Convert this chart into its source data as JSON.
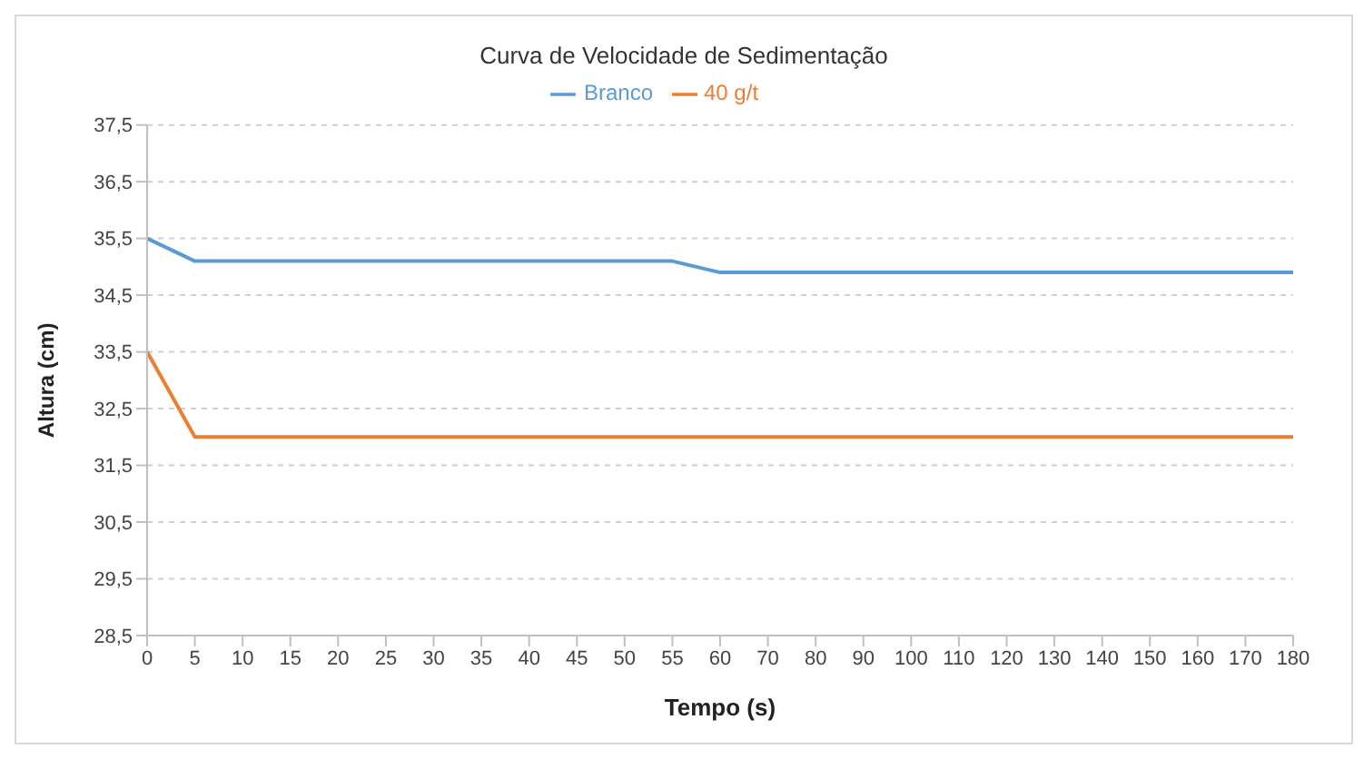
{
  "chart_data": {
    "type": "line",
    "title": "Curva de Velocidade de Sedimentação",
    "xlabel": "Tempo (s)",
    "ylabel": "Altura (cm)",
    "categories": [
      "0",
      "5",
      "10",
      "15",
      "20",
      "25",
      "30",
      "35",
      "40",
      "45",
      "50",
      "55",
      "60",
      "70",
      "80",
      "90",
      "100",
      "110",
      "120",
      "130",
      "140",
      "150",
      "160",
      "170",
      "180"
    ],
    "series": [
      {
        "name": "Branco",
        "color": "#5b9bd5",
        "values": [
          35.5,
          35.1,
          35.1,
          35.1,
          35.1,
          35.1,
          35.1,
          35.1,
          35.1,
          35.1,
          35.1,
          35.1,
          34.9,
          34.9,
          34.9,
          34.9,
          34.9,
          34.9,
          34.9,
          34.9,
          34.9,
          34.9,
          34.9,
          34.9,
          34.9
        ]
      },
      {
        "name": "40 g/t",
        "color": "#ed7d31",
        "values": [
          33.5,
          32,
          32,
          32,
          32,
          32,
          32,
          32,
          32,
          32,
          32,
          32,
          32,
          32,
          32,
          32,
          32,
          32,
          32,
          32,
          32,
          32,
          32,
          32,
          32
        ]
      }
    ],
    "ylim": [
      28.5,
      37.5
    ],
    "yticks": [
      {
        "value": 28.5,
        "label": "28,5"
      },
      {
        "value": 29.5,
        "label": "29,5"
      },
      {
        "value": 30.5,
        "label": "30,5"
      },
      {
        "value": 31.5,
        "label": "31,5"
      },
      {
        "value": 32.5,
        "label": "32,5"
      },
      {
        "value": 33.5,
        "label": "33,5"
      },
      {
        "value": 34.5,
        "label": "34,5"
      },
      {
        "value": 35.5,
        "label": "35,5"
      },
      {
        "value": 36.5,
        "label": "36,5"
      },
      {
        "value": 37.5,
        "label": "37,5"
      }
    ],
    "grid": "y",
    "legend": "top",
    "marker": "none",
    "line_style": "solid"
  }
}
